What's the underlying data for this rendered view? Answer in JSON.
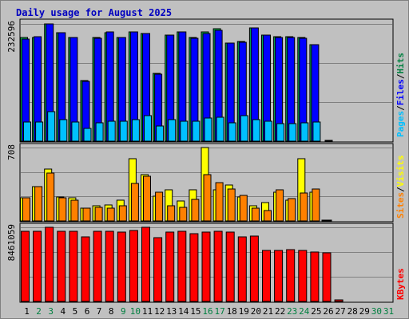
{
  "chart_data": {
    "type": "bar",
    "title": "Daily usage for August 2025",
    "categories": [
      "1",
      "2",
      "3",
      "4",
      "5",
      "6",
      "7",
      "8",
      "9",
      "10",
      "11",
      "12",
      "13",
      "14",
      "15",
      "16",
      "17",
      "18",
      "19",
      "20",
      "21",
      "22",
      "23",
      "24",
      "25",
      "26",
      "27",
      "28",
      "29",
      "30",
      "31"
    ],
    "weekend_days": [
      2,
      3,
      9,
      10,
      16,
      17,
      23,
      24,
      30,
      31
    ],
    "panels": [
      {
        "id": "hits",
        "max_label": "232596",
        "ymax": 232596,
        "side_label": [
          "Pages",
          "/",
          "Files",
          "/",
          "Hits"
        ],
        "side_colors": [
          "#00c0ff",
          "#000000",
          "#0000ff",
          "#000000",
          "#008040"
        ],
        "series": [
          {
            "name": "Hits",
            "color": "#00b050",
            "values": [
              205000,
              205000,
              232596,
              215000,
              205000,
              120000,
              205000,
              215000,
              205000,
              216000,
              213000,
              135000,
              210000,
              217000,
              205000,
              217000,
              223000,
              195000,
              197000,
              225000,
              211000,
              208000,
              207000,
              205000,
              191000,
              0,
              0,
              0,
              0,
              0,
              0
            ]
          },
          {
            "name": "Files",
            "color": "#0000ff",
            "values": [
              203000,
              208000,
              232000,
              215000,
              205000,
              118000,
              204000,
              217000,
              205000,
              217000,
              213000,
              133000,
              210000,
              216000,
              204000,
              213000,
              220000,
              195000,
              196000,
              225000,
              211000,
              205000,
              206000,
              204000,
              191000,
              0,
              0,
              0,
              0,
              0,
              0
            ]
          },
          {
            "name": "Pages",
            "color": "#00c0ff",
            "values": [
              38000,
              38000,
              58000,
              42000,
              38000,
              26000,
              36000,
              40000,
              40000,
              43000,
              50000,
              30000,
              42000,
              40000,
              40000,
              46000,
              47000,
              36000,
              50000,
              42000,
              40000,
              35000,
              35000,
              37000,
              38000,
              1500,
              0,
              0,
              0,
              0,
              0
            ]
          }
        ]
      },
      {
        "id": "visits",
        "max_label": "708",
        "ymax": 708,
        "side_label": [
          "Sites",
          "/",
          "Visits"
        ],
        "side_colors": [
          "#ff8000",
          "#000000",
          "#ffff00"
        ],
        "series": [
          {
            "name": "Visits",
            "color": "#ffff00",
            "values": [
              220,
              330,
              500,
              230,
              220,
              120,
              150,
              155,
              200,
              600,
              450,
              235,
              300,
              190,
              300,
              708,
              300,
              350,
              230,
              150,
              180,
              280,
              200,
              600,
              280,
              9,
              0,
              0,
              0,
              0,
              0
            ]
          },
          {
            "name": "Sites",
            "color": "#ff8000",
            "values": [
              220,
              330,
              460,
              220,
              200,
              120,
              130,
              125,
              150,
              365,
              430,
              280,
              150,
              130,
              205,
              450,
              370,
              310,
              250,
              125,
              100,
              300,
              215,
              270,
              310,
              9,
              0,
              0,
              0,
              0,
              0
            ]
          }
        ]
      },
      {
        "id": "kbytes",
        "max_label": "8461059",
        "ymax": 8461059,
        "side_label": [
          "KBytes"
        ],
        "side_colors": [
          "#ff0000"
        ],
        "series": [
          {
            "name": "KBytes",
            "color": "#ff0000",
            "values": [
              8050000,
              8050000,
              8461059,
              8050000,
              8050000,
              7350000,
              8000000,
              8050000,
              7950000,
              8100000,
              8461059,
              7300000,
              7950000,
              8050000,
              7700000,
              7950000,
              8000000,
              7950000,
              7350000,
              7500000,
              5850000,
              5850000,
              5950000,
              5850000,
              5650000,
              5550000,
              150000,
              0,
              0,
              0,
              0
            ]
          }
        ]
      }
    ],
    "colors": {
      "background": "#c0c0c0",
      "grid": "#808080",
      "title": "#0000c0",
      "weekday_label": "#000000",
      "weekend_label": "#008040"
    }
  }
}
